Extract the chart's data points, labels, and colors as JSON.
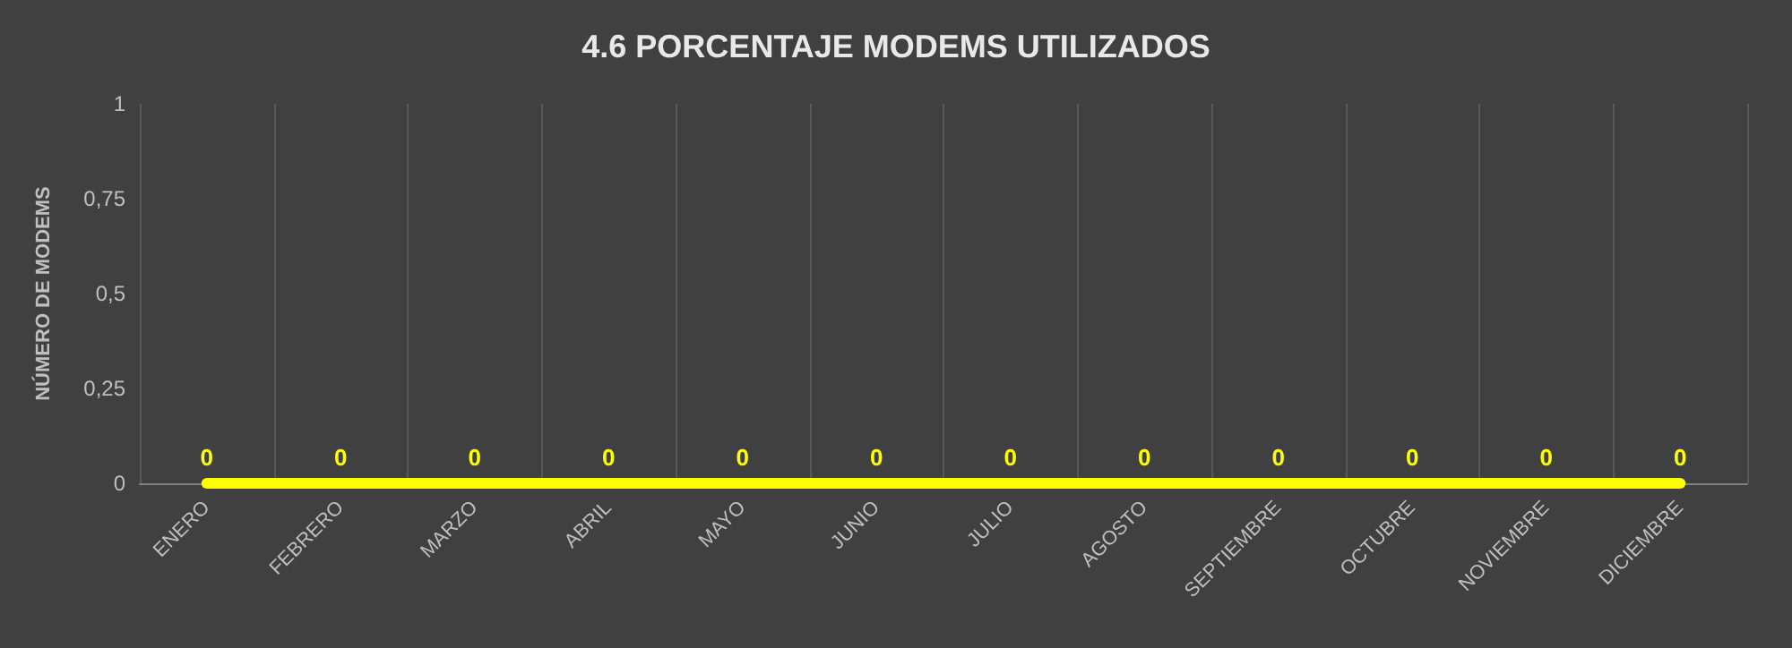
{
  "chart_data": {
    "type": "line",
    "title": "4.6 PORCENTAJE MODEMS UTILIZADOS",
    "ylabel": "NÚMERO DE MODEMS",
    "categories": [
      "ENERO",
      "FEBRERO",
      "MARZO",
      "ABRIL",
      "MAYO",
      "JUNIO",
      "JULIO",
      "AGOSTO",
      "SEPTIEMBRE",
      "OCTUBRE",
      "NOVIEMBRE",
      "DICIEMBRE"
    ],
    "series": [
      {
        "color": "#ffff00",
        "values": [
          0,
          0,
          0,
          0,
          0,
          0,
          0,
          0,
          0,
          0,
          0,
          0
        ]
      }
    ],
    "ylim": [
      0,
      1
    ],
    "yticks": [
      0,
      {
        "value": 0.25,
        "label": "0,25"
      },
      {
        "value": 0.5,
        "label": "0,5"
      },
      {
        "value": 0.75,
        "label": "0,75"
      },
      1
    ],
    "grid": "x",
    "marker": "none",
    "line_style": "solid",
    "data_labels": true
  }
}
